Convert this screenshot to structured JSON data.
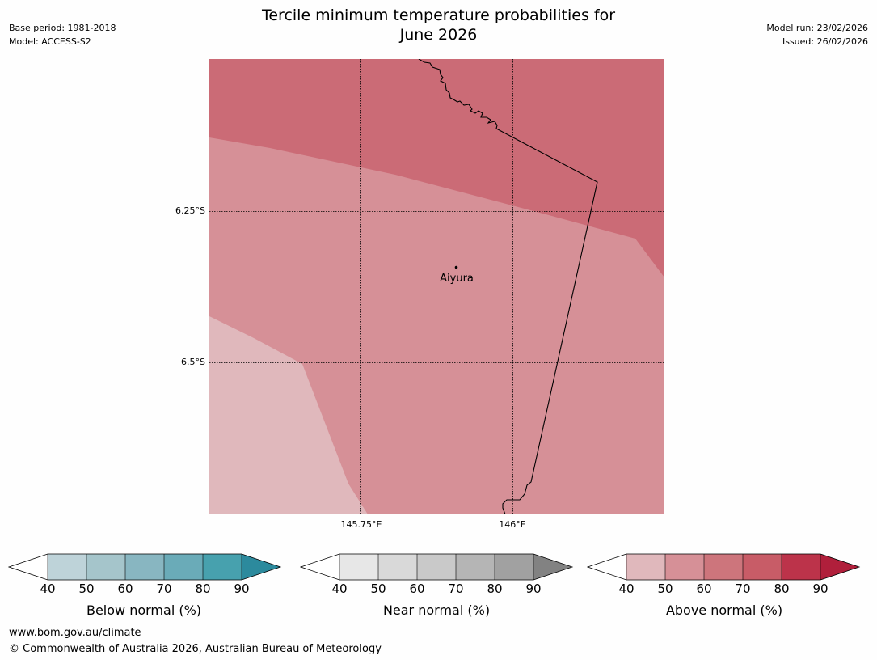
{
  "header": {
    "title_line1": "Tercile minimum temperature probabilities for",
    "title_line2": "June 2026",
    "base_period": "Base period: 1981-2018",
    "model": "Model: ACCESS-S2",
    "model_run": "Model run: 23/02/2026",
    "issued": "Issued: 26/02/2026"
  },
  "map": {
    "latitude_labels": [
      "6.25°S",
      "6.5°S"
    ],
    "longitude_labels": [
      "145.75°E",
      "146°E"
    ],
    "place": {
      "name": "Aiyura"
    },
    "zones": [
      {
        "category": "Above normal",
        "range": "60-70%",
        "color": "#cb6b76"
      },
      {
        "category": "Above normal",
        "range": "50-60%",
        "color": "#d69097"
      },
      {
        "category": "Above normal",
        "range": "40-50%",
        "color": "#e0b8bc"
      }
    ]
  },
  "legends": [
    {
      "id": "below",
      "title": "Below normal (%)",
      "ticks": [
        "40",
        "50",
        "60",
        "70",
        "80",
        "90"
      ],
      "colors": [
        "#ffffff",
        "#bed3d9",
        "#a5c5cb",
        "#88b6c1",
        "#6aabb8",
        "#47a1ae",
        "#2c8a9d"
      ]
    },
    {
      "id": "near",
      "title": "Near normal (%)",
      "ticks": [
        "40",
        "50",
        "60",
        "70",
        "80",
        "90"
      ],
      "colors": [
        "#ffffff",
        "#e7e7e7",
        "#d9d9d9",
        "#c9c9c9",
        "#b5b5b5",
        "#a1a1a1",
        "#828282"
      ]
    },
    {
      "id": "above",
      "title": "Above normal (%)",
      "ticks": [
        "40",
        "50",
        "60",
        "70",
        "80",
        "90"
      ],
      "colors": [
        "#ffffff",
        "#e0b8bc",
        "#d69097",
        "#cd757c",
        "#c85c67",
        "#bc334a",
        "#b01f3b"
      ]
    }
  ],
  "footer": {
    "url": "www.bom.gov.au/climate",
    "copyright": "© Commonwealth of Australia 2026, Australian Bureau of Meteorology"
  }
}
